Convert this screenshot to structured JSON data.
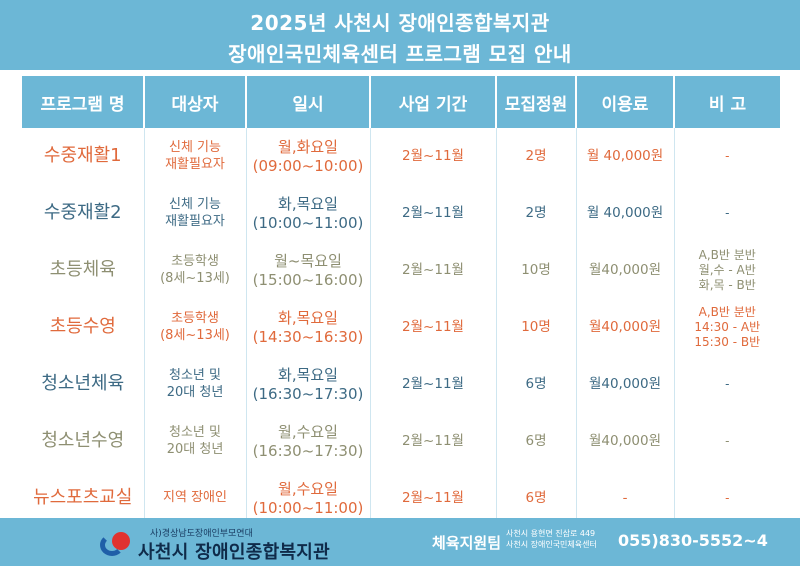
{
  "header": {
    "title_line1": "2025년 사천시 장애인종합복지관",
    "title_line2": "장애인국민체육센터 프로그램 모집 안내"
  },
  "table": {
    "columns": [
      "프로그램 명",
      "대상자",
      "일시",
      "사업 기간",
      "모집정원",
      "이용료",
      "비 고"
    ],
    "rows": [
      {
        "name": "수중재활1",
        "target": [
          "신체 기능",
          "재활필요자"
        ],
        "time": [
          "월,화요일",
          "(09:00~10:00)"
        ],
        "period": "2월~11월",
        "quota": "2명",
        "fee": "월 40,000원",
        "note": [
          "-"
        ],
        "color": "orange"
      },
      {
        "name": "수중재활2",
        "target": [
          "신체 기능",
          "재활필요자"
        ],
        "time": [
          "화,목요일",
          "(10:00~11:00)"
        ],
        "period": "2월~11월",
        "quota": "2명",
        "fee": "월 40,000원",
        "note": [
          "-"
        ],
        "color": "blue"
      },
      {
        "name": "초등체육",
        "target": [
          "초등학생",
          "(8세~13세)"
        ],
        "time": [
          "월~목요일",
          "(15:00~16:00)"
        ],
        "period": "2월~11월",
        "quota": "10명",
        "fee": "월40,000원",
        "note": [
          "A,B반 분반",
          "월,수 - A반",
          "화,목 - B반"
        ],
        "color": "olive"
      },
      {
        "name": "초등수영",
        "target": [
          "초등학생",
          "(8세~13세)"
        ],
        "time": [
          "화,목요일",
          "(14:30~16:30)"
        ],
        "period": "2월~11월",
        "quota": "10명",
        "fee": "월40,000원",
        "note": [
          "A,B반 분반",
          "14:30 - A반",
          "15:30 - B반"
        ],
        "color": "orange"
      },
      {
        "name": "청소년체육",
        "target": [
          "청소년 및",
          "20대 청년"
        ],
        "time": [
          "화,목요일",
          "(16:30~17:30)"
        ],
        "period": "2월~11월",
        "quota": "6명",
        "fee": "월40,000원",
        "note": [
          "-"
        ],
        "color": "blue"
      },
      {
        "name": "청소년수영",
        "target": [
          "청소년 및",
          "20대 청년"
        ],
        "time": [
          "월,수요일",
          "(16:30~17:30)"
        ],
        "period": "2월~11월",
        "quota": "6명",
        "fee": "월40,000원",
        "note": [
          "-"
        ],
        "color": "olive"
      },
      {
        "name": "뉴스포츠교실",
        "target": [
          "지역 장애인"
        ],
        "time": [
          "월,수요일",
          "(10:00~11:00)"
        ],
        "period": "2월~11월",
        "quota": "6명",
        "fee": "-",
        "note": [
          "-"
        ],
        "color": "orange"
      }
    ]
  },
  "footer": {
    "org_small": "사)경상남도장애인부모연대",
    "org_name": "사천시 장애인종합복지관",
    "team": "체육지원팀",
    "address_line1": "사천시 용현면 진삼로 449",
    "address_line2": "사천시 장애인국민체육센터",
    "phone": "055)830-5552~4"
  },
  "colors": {
    "header_bg": "#6cb7d6",
    "orange_text": "#e06a3c",
    "blue_text": "#3d6a84",
    "olive_text": "#8e8f72"
  }
}
